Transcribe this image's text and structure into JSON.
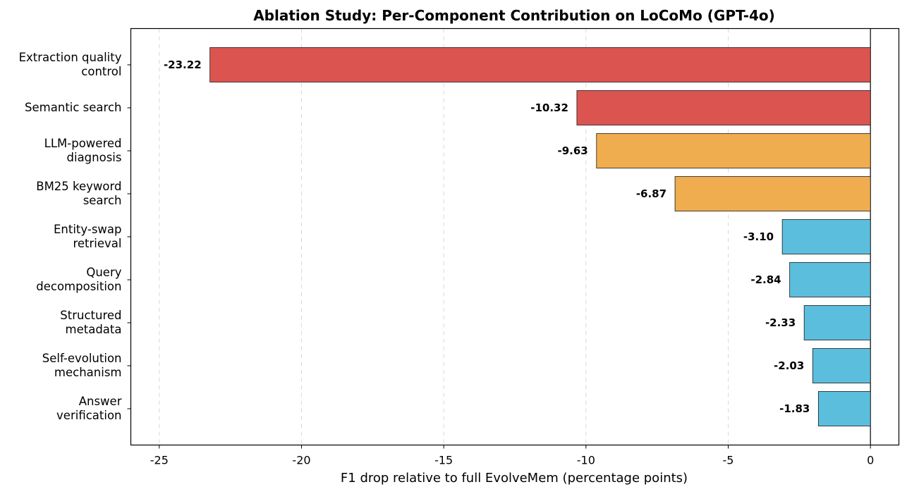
{
  "chart_data": {
    "type": "bar",
    "orientation": "horizontal",
    "title": "Ablation Study: Per-Component Contribution on LoCoMo (GPT-4o)",
    "xlabel": "F1 drop relative to full EvolveMem (percentage points)",
    "ylabel": "",
    "xlim": [
      -26,
      1
    ],
    "grid": "x, dashed",
    "xticks": [
      -25,
      -20,
      -15,
      -10,
      -5,
      0
    ],
    "xtick_labels": [
      "-25",
      "-20",
      "-15",
      "-10",
      "-5",
      "0"
    ],
    "categories": [
      [
        "Extraction quality",
        "control"
      ],
      [
        "Semantic search"
      ],
      [
        "LLM-powered",
        "diagnosis"
      ],
      [
        "BM25 keyword",
        "search"
      ],
      [
        "Entity-swap",
        "retrieval"
      ],
      [
        "Query",
        "decomposition"
      ],
      [
        "Structured",
        "metadata"
      ],
      [
        "Self-evolution",
        "mechanism"
      ],
      [
        "Answer",
        "verification"
      ]
    ],
    "values": [
      -23.22,
      -10.32,
      -9.63,
      -6.87,
      -3.1,
      -2.84,
      -2.33,
      -2.03,
      -1.83
    ],
    "value_labels": [
      "-23.22",
      "-10.32",
      "-9.63",
      "-6.87",
      "-3.10",
      "-2.84",
      "-2.33",
      "-2.03",
      "-1.83"
    ],
    "colors": [
      "#db5450",
      "#db5450",
      "#efad4f",
      "#efad4f",
      "#5cbedd",
      "#5cbedd",
      "#5cbedd",
      "#5cbedd",
      "#5cbedd"
    ]
  }
}
